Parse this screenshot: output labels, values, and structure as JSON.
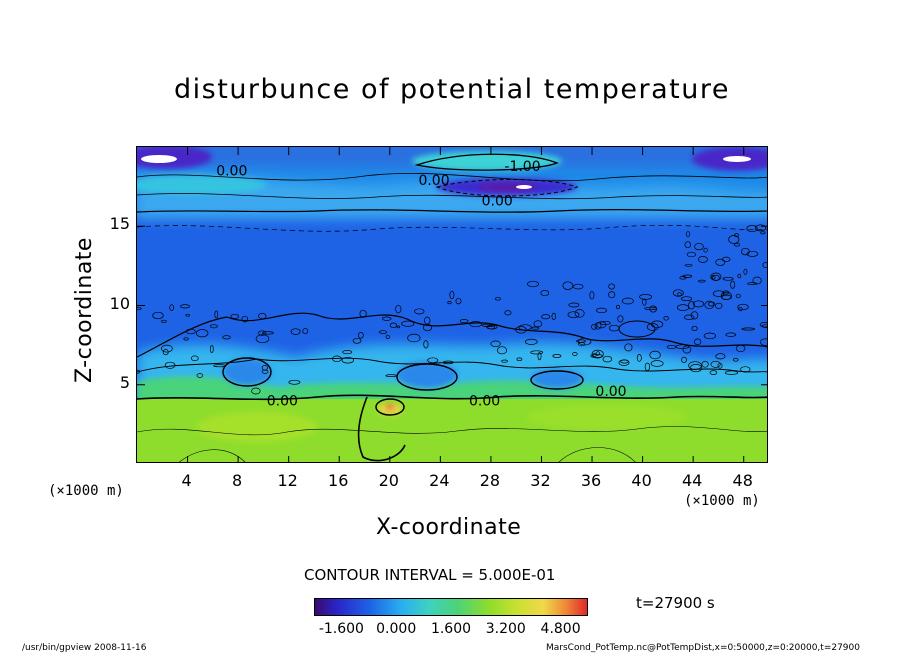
{
  "chart_data": {
    "type": "heatmap",
    "title": "disturbunce of potential temperature",
    "xlabel": "X-coordinate",
    "ylabel": "Z-coordinate",
    "x_unit": "(×1000 m)",
    "y_unit": "(×1000 m)",
    "xlim": [
      0,
      50
    ],
    "ylim": [
      0,
      20
    ],
    "x_ticks": [
      4,
      8,
      12,
      16,
      20,
      24,
      28,
      32,
      36,
      40,
      44,
      48
    ],
    "y_ticks": [
      5,
      10,
      15
    ],
    "contour_interval_text": "CONTOUR INTERVAL = 5.000E-01",
    "contour_labels": [
      {
        "text": "0.00",
        "x": 7.5,
        "z": 18.2
      },
      {
        "text": "-1.00",
        "x": 30.5,
        "z": 18.5
      },
      {
        "text": "0.00",
        "x": 23.5,
        "z": 17.6
      },
      {
        "text": "0.00",
        "x": 28.5,
        "z": 16.3
      },
      {
        "text": "0.00",
        "x": 11.5,
        "z": 3.7
      },
      {
        "text": "0.00",
        "x": 27.5,
        "z": 3.7
      },
      {
        "text": "0.00",
        "x": 37.5,
        "z": 4.3
      }
    ],
    "colorbar_ticks": [
      "-1.600",
      "0.000",
      "1.600",
      "3.200",
      "4.800"
    ],
    "colorbar_range": [
      -2.4,
      5.6
    ],
    "time_label": "t=27900 s"
  },
  "footer": {
    "left_text": "/usr/bin/gpview   2008-11-16",
    "right_text": "MarsCond_PotTemp.nc@PotTempDist,x=0:50000,z=0:20000,t=27900"
  }
}
